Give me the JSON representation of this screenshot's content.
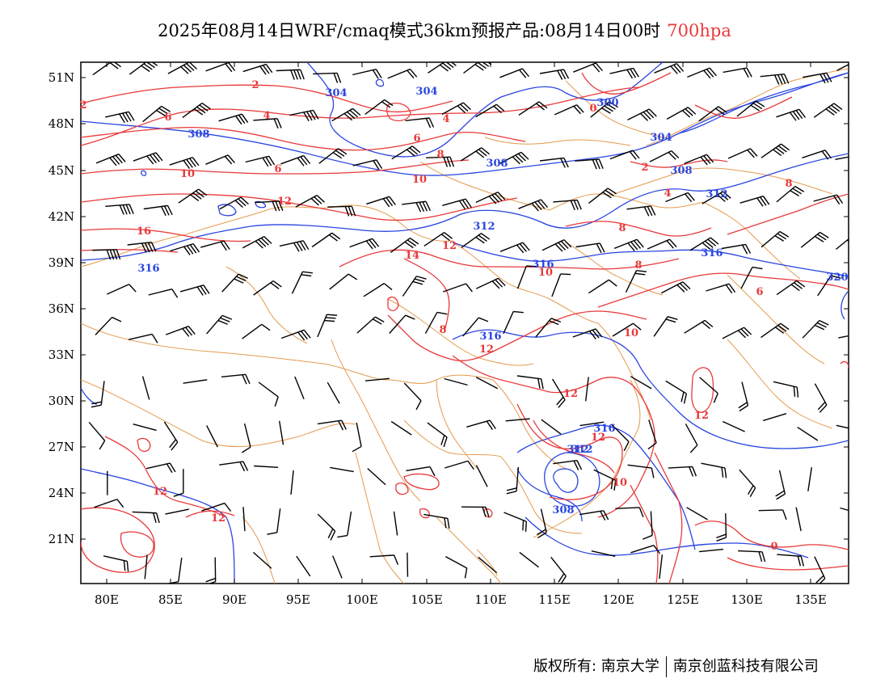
{
  "title": {
    "main": "2025年08月14日WRF/cmaq模式36km预报产品:08月14日00时",
    "level": "700hpa"
  },
  "map": {
    "lon_labels": [
      "80E",
      "85E",
      "90E",
      "95E",
      "100E",
      "105E",
      "110E",
      "115E",
      "120E",
      "125E",
      "130E",
      "135E"
    ],
    "lat_labels": [
      "51N",
      "48N",
      "45N",
      "42N",
      "39N",
      "36N",
      "33N",
      "30N",
      "27N",
      "24N",
      "21N"
    ],
    "height_contour_labels": [
      "304",
      "304",
      "300",
      "308",
      "304",
      "308",
      "308",
      "312",
      "312",
      "316",
      "316",
      "312",
      "316",
      "320",
      "316",
      "312",
      "308",
      "316"
    ],
    "temperature_contour_labels": [
      "2",
      "2",
      "4",
      "4",
      "6",
      "6",
      "6",
      "8",
      "8",
      "8",
      "8",
      "10",
      "10",
      "10",
      "10",
      "10",
      "12",
      "12",
      "12",
      "12",
      "12",
      "12",
      "12",
      "12",
      "14",
      "16",
      "8",
      "6",
      "2",
      "4",
      "0",
      "0"
    ],
    "colors": {
      "height": "#2a45e0",
      "temperature": "#e8393a",
      "boundary": "#e59a4e",
      "wind": "#000000"
    }
  },
  "footer": {
    "owner": "版权所有: 南京大学",
    "company": "南京创蓝科技有限公司"
  }
}
